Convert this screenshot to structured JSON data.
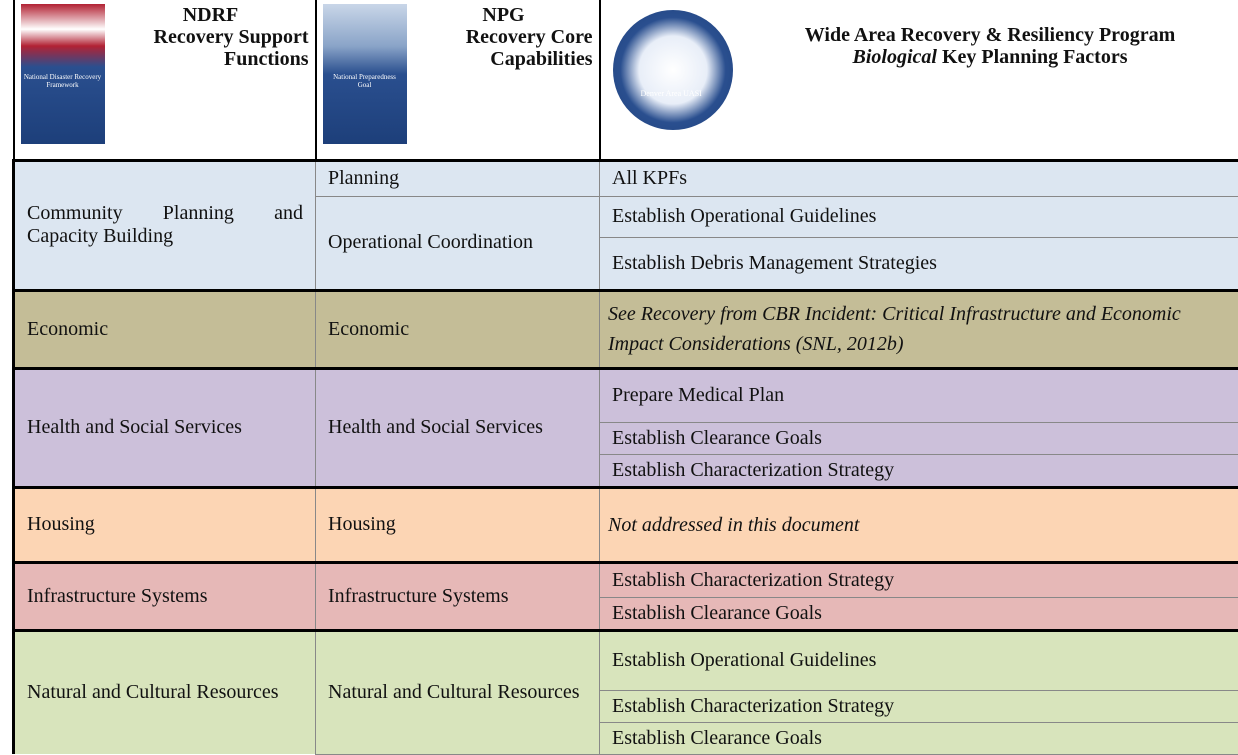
{
  "header": {
    "columns": [
      {
        "title": "NDRF",
        "subtitle": "Recovery Support Functions",
        "cover_text": "National Disaster Recovery Framework"
      },
      {
        "title": "NPG",
        "subtitle": "Recovery Core Capabilities",
        "cover_text": "National Preparedness Goal"
      },
      {
        "title": "Wide Area Recovery & Resiliency Program",
        "subtitle_emphasis": "Biological",
        "subtitle": "Key Planning Factors",
        "logo_text": "Denver Area UASI"
      }
    ]
  },
  "rows": [
    {
      "function": "Community Planning and Capacity Building",
      "color": "#dce6f1",
      "capabilities": [
        {
          "name": "Planning",
          "kpfs": [
            "All KPFs"
          ]
        },
        {
          "name": "Operational Coordination",
          "kpfs": [
            "Establish Operational Guidelines",
            "Establish Debris Management Strategies"
          ]
        }
      ]
    },
    {
      "function": "Economic",
      "color": "#c4bd97",
      "italic": true,
      "capabilities": [
        {
          "name": "Economic",
          "kpfs": [
            "See Recovery from CBR Incident: Critical Infrastructure and Economic Impact Considerations (SNL, 2012b)"
          ]
        }
      ]
    },
    {
      "function": "Health and Social Services",
      "color": "#ccc0da",
      "capabilities": [
        {
          "name": "Health and Social Services",
          "kpfs": [
            "Prepare Medical Plan",
            "Establish Clearance Goals",
            "Establish Characterization Strategy"
          ]
        }
      ]
    },
    {
      "function": "Housing",
      "color": "#fcd5b4",
      "italic": true,
      "capabilities": [
        {
          "name": "Housing",
          "kpfs": [
            "Not addressed in this document"
          ]
        }
      ]
    },
    {
      "function": "Infrastructure Systems",
      "color": "#e6b8b7",
      "capabilities": [
        {
          "name": "Infrastructure Systems",
          "kpfs": [
            "Establish Characterization Strategy",
            "Establish Clearance Goals"
          ]
        }
      ]
    },
    {
      "function": "Natural and Cultural Resources",
      "color": "#d8e4bc",
      "capabilities": [
        {
          "name": "Natural and Cultural Resources",
          "kpfs": [
            "Establish Operational Guidelines",
            "Establish Characterization Strategy",
            "Establish Clearance Goals"
          ]
        }
      ]
    }
  ]
}
